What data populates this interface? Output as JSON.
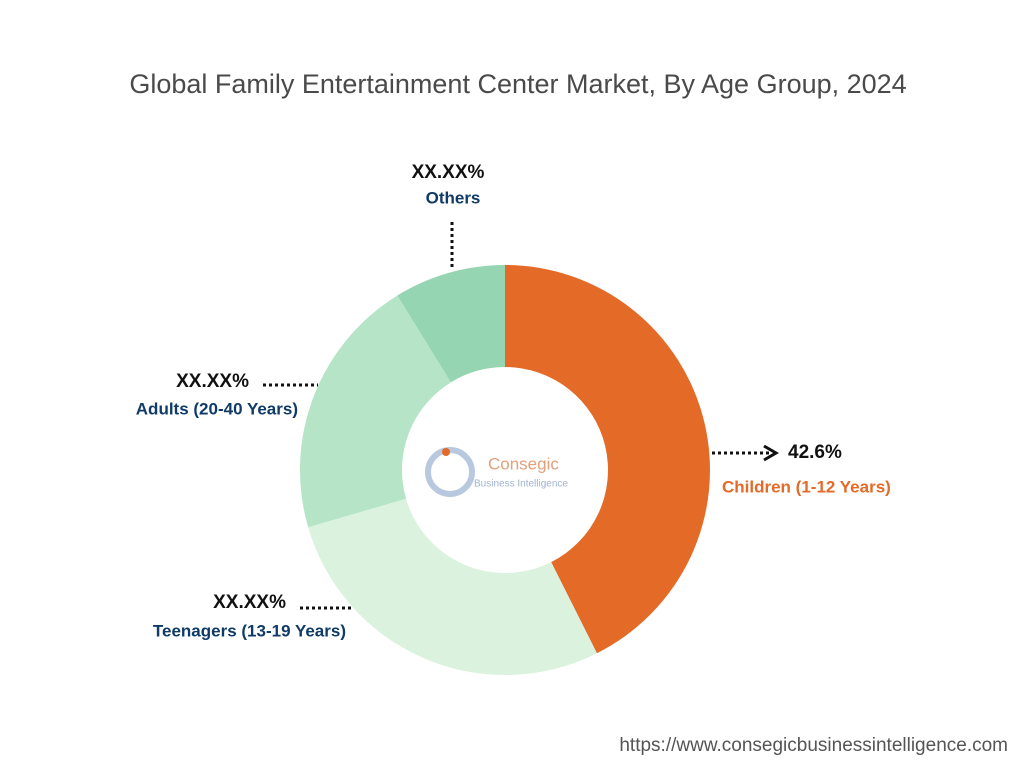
{
  "chart_data": {
    "type": "pie",
    "title": "Global Family Entertainment Center Market, By Age Group, 2024",
    "categories": [
      "Children (1-12 Years)",
      "Teenagers (13-19 Years)",
      "Adults (20-40 Years)",
      "Others"
    ],
    "values": [
      42.6,
      27.9,
      20.7,
      8.8
    ],
    "value_labels": [
      "42.6%",
      "XX.XX%",
      "XX.XX%",
      "XX.XX%"
    ],
    "colors": [
      "#e36a27",
      "#dbf2de",
      "#b5e4c7",
      "#96d5b2"
    ],
    "label_colors": [
      "#e36a27",
      "#0f3b66",
      "#0f3b66",
      "#0f3b66"
    ]
  },
  "watermark": {
    "brand": "Consegic",
    "tagline": "Business Intelligence"
  },
  "footer": "https://www.consegicbusinessintelligence.com"
}
